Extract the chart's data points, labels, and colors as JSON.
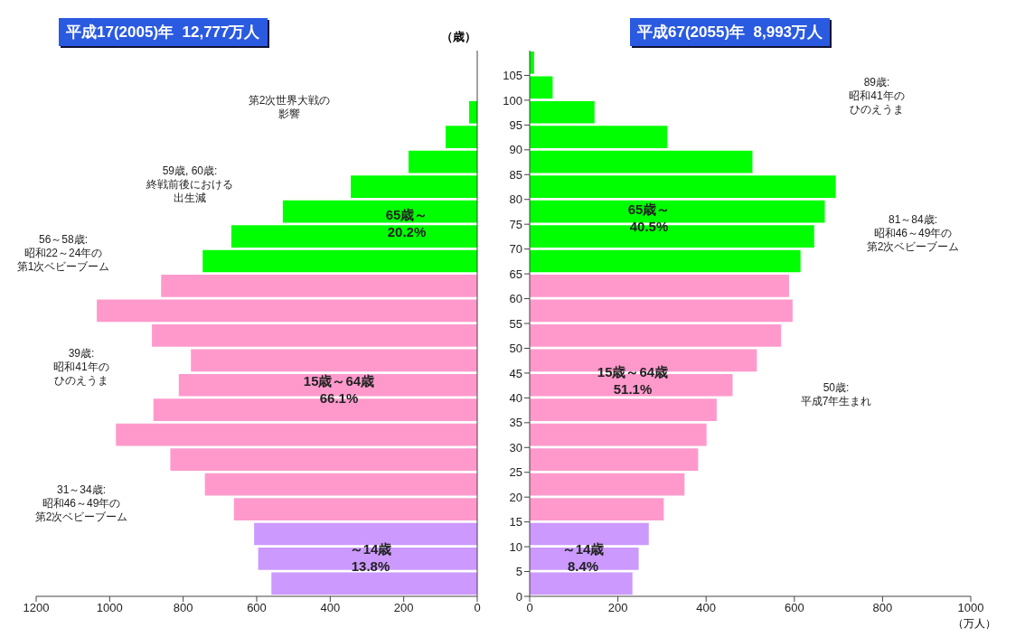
{
  "chart_data": [
    {
      "type": "histogram",
      "orientation": "horizontal",
      "title": "平成17(2005)年  12,777万人",
      "ylabel": "（歳）",
      "bins": [
        0,
        5,
        10,
        15,
        20,
        25,
        30,
        35,
        40,
        45,
        50,
        55,
        60,
        65,
        70,
        75,
        80,
        85,
        90,
        95,
        100,
        105
      ],
      "values": [
        560,
        596,
        607,
        662,
        741,
        835,
        983,
        881,
        812,
        779,
        885,
        1035,
        860,
        747,
        669,
        529,
        344,
        187,
        86,
        22,
        null
      ],
      "colors": [
        "#cc99ff",
        "#cc99ff",
        "#cc99ff",
        "#ff99cc",
        "#ff99cc",
        "#ff99cc",
        "#ff99cc",
        "#ff99cc",
        "#ff99cc",
        "#ff99cc",
        "#ff99cc",
        "#ff99cc",
        "#ff99cc",
        "#00ff00",
        "#00ff00",
        "#00ff00",
        "#00ff00",
        "#00ff00",
        "#00ff00",
        "#00ff00",
        "#00ff00"
      ],
      "xlim": [
        1200,
        0
      ],
      "xticks": [
        1200,
        1000,
        800,
        600,
        400,
        200,
        0
      ],
      "ylim": [
        0,
        110
      ],
      "yticks": [
        0,
        5,
        10,
        15,
        20,
        25,
        30,
        35,
        40,
        45,
        50,
        55,
        60,
        65,
        70,
        75,
        80,
        85,
        90,
        95,
        100,
        105
      ],
      "tick_labels": "x",
      "annotations": [
        "65歳～20.2%",
        "15歳～64歳66.1%",
        "～14歳13.8%",
        "第2次世界大戦の影響",
        "59歳, 60歳:終戦前後における出生減",
        "56～58歳:昭和22～24年の第1次ベビーブーム",
        "39歳:昭和41年のひのえうま",
        "31～34歳:昭和46～49年の第2次ベビーブーム"
      ]
    },
    {
      "type": "histogram",
      "orientation": "horizontal",
      "title": "平成67(2055)年  8,993万人",
      "xlabel": "（万人）",
      "bins": [
        0,
        5,
        10,
        15,
        20,
        25,
        30,
        35,
        40,
        45,
        50,
        55,
        60,
        65,
        70,
        75,
        80,
        85,
        90,
        95,
        100,
        105,
        110
      ],
      "values": [
        233,
        247,
        270,
        304,
        351,
        382,
        401,
        424,
        460,
        515,
        570,
        596,
        588,
        614,
        645,
        669,
        694,
        505,
        312,
        147,
        52,
        10
      ],
      "colors": [
        "#cc99ff",
        "#cc99ff",
        "#cc99ff",
        "#ff99cc",
        "#ff99cc",
        "#ff99cc",
        "#ff99cc",
        "#ff99cc",
        "#ff99cc",
        "#ff99cc",
        "#ff99cc",
        "#ff99cc",
        "#ff99cc",
        "#00ff00",
        "#00ff00",
        "#00ff00",
        "#00ff00",
        "#00ff00",
        "#00ff00",
        "#00ff00",
        "#00ff00",
        "#00ff00"
      ],
      "xlim": [
        0,
        1000
      ],
      "xticks": [
        0,
        200,
        400,
        600,
        800,
        1000
      ],
      "ylim": [
        0,
        110
      ],
      "yticks": [
        0,
        5,
        10,
        15,
        20,
        25,
        30,
        35,
        40,
        45,
        50,
        55,
        60,
        65,
        70,
        75,
        80,
        85,
        90,
        95,
        100,
        105
      ],
      "annotations": [
        "65歳～40.5%",
        "15歳～64歳51.1%",
        "～14歳8.4%",
        "89歳:昭和41年のひのえうま",
        "81～84歳:昭和46～49年の第2次ベビーブーム",
        "50歳:平成7年生まれ"
      ]
    }
  ]
}
